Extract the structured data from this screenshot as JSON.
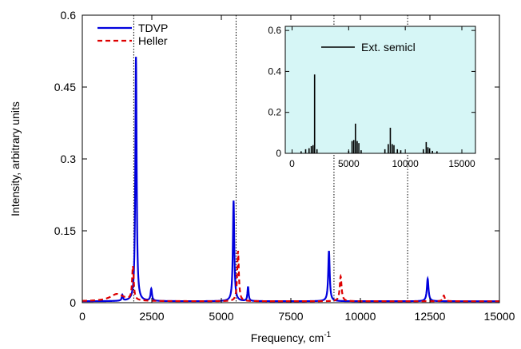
{
  "chart_data": {
    "type": "line",
    "xlabel": "Frequency, cm",
    "xlabel_superscript": "-1",
    "ylabel": "Intensity, arbitrary units",
    "xlim": [
      0,
      15000
    ],
    "ylim": [
      0,
      0.6
    ],
    "x_ticks": [
      0,
      2500,
      5000,
      7500,
      10000,
      12500,
      15000
    ],
    "y_ticks": [
      0,
      0.15,
      0.3,
      0.45,
      0.6
    ],
    "y_tick_labels": [
      "0",
      "0.15",
      "0.3",
      "0.45",
      "0.6"
    ],
    "grid": false,
    "legend_position": "top-left",
    "reference_lines_x": [
      1850,
      5530,
      9050,
      11700
    ],
    "series": [
      {
        "name": "TDVP",
        "color": "#0000dd",
        "style": "solid",
        "baseline": 0.003,
        "peaks": [
          {
            "x": 1440,
            "y": 0.012,
            "w": 25
          },
          {
            "x": 1930,
            "y": 0.51,
            "w": 28
          },
          {
            "x": 2480,
            "y": 0.025,
            "w": 30
          },
          {
            "x": 5440,
            "y": 0.21,
            "w": 30
          },
          {
            "x": 5960,
            "y": 0.03,
            "w": 25
          },
          {
            "x": 8870,
            "y": 0.105,
            "w": 32
          },
          {
            "x": 12420,
            "y": 0.047,
            "w": 35
          }
        ]
      },
      {
        "name": "Heller",
        "color": "#dd0000",
        "style": "dashed",
        "baseline": 0.003,
        "peaks": [
          {
            "x": 1250,
            "y": 0.015,
            "w": 300
          },
          {
            "x": 1820,
            "y": 0.07,
            "w": 35
          },
          {
            "x": 5600,
            "y": 0.105,
            "w": 35
          },
          {
            "x": 9290,
            "y": 0.052,
            "w": 40
          },
          {
            "x": 13000,
            "y": 0.012,
            "w": 40
          }
        ]
      }
    ],
    "inset": {
      "type": "bar",
      "background": "#d6f6f6",
      "xlim": [
        -600,
        16200
      ],
      "ylim": [
        0,
        0.62
      ],
      "x_ticks": [
        0,
        5000,
        10000,
        15000
      ],
      "y_ticks": [
        0,
        0.2,
        0.4,
        0.6
      ],
      "y_tick_labels": [
        "0",
        "0.2",
        "0.4",
        "0.6"
      ],
      "series": [
        {
          "name": "Ext. semicl",
          "color": "#000000",
          "lines": [
            [
              800,
              0.01
            ],
            [
              1200,
              0.02
            ],
            [
              1500,
              0.025
            ],
            [
              1700,
              0.035
            ],
            [
              1850,
              0.04
            ],
            [
              1990,
              0.385
            ],
            [
              2200,
              0.02
            ],
            [
              5000,
              0.012
            ],
            [
              5300,
              0.06
            ],
            [
              5450,
              0.065
            ],
            [
              5600,
              0.145
            ],
            [
              5750,
              0.06
            ],
            [
              5900,
              0.05
            ],
            [
              6100,
              0.015
            ],
            [
              8200,
              0.02
            ],
            [
              8500,
              0.045
            ],
            [
              8680,
              0.125
            ],
            [
              8850,
              0.045
            ],
            [
              9000,
              0.04
            ],
            [
              9300,
              0.02
            ],
            [
              9600,
              0.015
            ],
            [
              11600,
              0.02
            ],
            [
              11850,
              0.055
            ],
            [
              12000,
              0.03
            ],
            [
              12150,
              0.025
            ],
            [
              12400,
              0.012
            ],
            [
              12800,
              0.01
            ]
          ]
        }
      ]
    }
  }
}
